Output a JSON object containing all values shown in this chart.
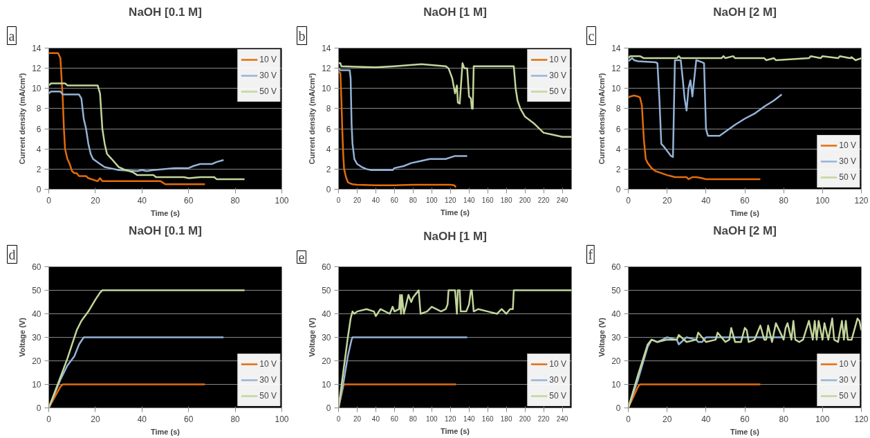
{
  "chart_data": [
    {
      "type": "line",
      "title": "NaOH [0.1 M]",
      "xlabel": "Time (s)",
      "ylabel": "Current density (mA/cm²)",
      "annotations": [
        "a"
      ],
      "xlim": [
        0,
        100
      ],
      "xticks": [
        0,
        20,
        40,
        60,
        80,
        100
      ],
      "ylim": [
        0,
        14
      ],
      "yticks": [
        0,
        2,
        4,
        6,
        8,
        10,
        12,
        14
      ],
      "grid": "y",
      "legend": "top right",
      "series": [
        {
          "name": "10 V",
          "color": "#e46c0a",
          "x": [
            0,
            3,
            4,
            5,
            6,
            6.5,
            7,
            8,
            9,
            10,
            11,
            12,
            13,
            16,
            17,
            21,
            22,
            23,
            24,
            48,
            50,
            67
          ],
          "values": [
            13.5,
            13.5,
            13.5,
            13,
            9,
            6,
            4,
            3,
            2.5,
            1.8,
            1.6,
            1.6,
            1.3,
            1.3,
            1.1,
            0.8,
            1.1,
            0.8,
            0.8,
            0.8,
            0.5,
            0.5
          ]
        },
        {
          "name": "30 V",
          "color": "#95b3d7",
          "x": [
            0,
            1,
            5,
            6,
            13,
            14,
            15,
            16,
            17,
            18,
            19,
            22,
            24,
            26,
            30,
            38,
            40,
            42,
            45,
            54,
            60,
            62,
            65,
            70,
            72,
            75
          ],
          "values": [
            9.5,
            9.7,
            9.7,
            9.4,
            9.4,
            9,
            7,
            6,
            4.5,
            3.5,
            3,
            2.5,
            2.2,
            2.1,
            1.9,
            1.8,
            1.9,
            1.8,
            1.9,
            2.1,
            2.1,
            2.3,
            2.5,
            2.5,
            2.7,
            2.9
          ]
        },
        {
          "name": "50 V",
          "color": "#c3d69b",
          "x": [
            0,
            1,
            7,
            8,
            20,
            21,
            22,
            23,
            24,
            25,
            27,
            30,
            33,
            36,
            38,
            45,
            46,
            58,
            60,
            65,
            71,
            72,
            84
          ],
          "values": [
            10.3,
            10.5,
            10.5,
            10.3,
            10.3,
            10.3,
            9.5,
            6,
            4.5,
            3.5,
            3,
            2.2,
            1.9,
            1.7,
            1.4,
            1.4,
            1.2,
            1.2,
            1.1,
            1.2,
            1.2,
            1.0,
            1.0
          ]
        }
      ]
    },
    {
      "type": "line",
      "title": "NaOH [1 M]",
      "xlabel": "Time (s)",
      "ylabel": "Current density (mA/cm²)",
      "annotations": [
        "b"
      ],
      "xlim": [
        0,
        250
      ],
      "xticks": [
        0,
        20,
        40,
        60,
        80,
        100,
        120,
        140,
        160,
        180,
        200,
        220,
        240
      ],
      "ylim": [
        0,
        14
      ],
      "yticks": [
        0,
        2,
        4,
        6,
        8,
        10,
        12,
        14
      ],
      "grid": "y",
      "legend": "top right",
      "series": [
        {
          "name": "10 V",
          "color": "#e46c0a",
          "x": [
            0,
            2,
            3,
            4,
            5,
            6,
            8,
            10,
            12,
            15,
            20,
            40,
            60,
            80,
            120,
            124,
            126
          ],
          "values": [
            11.7,
            11.5,
            9,
            6,
            3.5,
            2,
            1.2,
            0.7,
            0.6,
            0.5,
            0.45,
            0.4,
            0.4,
            0.45,
            0.45,
            0.4,
            0.2
          ]
        },
        {
          "name": "30 V",
          "color": "#95b3d7",
          "x": [
            0,
            2,
            3,
            12,
            13,
            14,
            15,
            17,
            20,
            25,
            30,
            35,
            58,
            60,
            70,
            78,
            88,
            98,
            115,
            125,
            138
          ],
          "values": [
            12,
            11.8,
            11.8,
            11.8,
            11,
            6.5,
            4.5,
            3,
            2.5,
            2.2,
            2,
            1.9,
            1.9,
            2.1,
            2.3,
            2.6,
            2.8,
            3.0,
            3.0,
            3.3,
            3.3
          ]
        },
        {
          "name": "50 V",
          "color": "#c3d69b",
          "x": [
            0,
            2,
            3,
            40,
            60,
            89,
            115,
            118,
            122,
            125,
            127,
            128,
            130,
            133,
            135,
            138,
            140,
            142,
            143,
            144,
            145,
            146,
            150,
            180,
            188,
            190,
            192,
            195,
            200,
            210,
            220,
            230,
            240,
            250
          ],
          "values": [
            12.5,
            12.5,
            12.2,
            12.1,
            12.2,
            12.4,
            12.2,
            12,
            11,
            9.5,
            10.3,
            8.6,
            8.5,
            12.5,
            12,
            12,
            9.2,
            9,
            8,
            8,
            12.2,
            12.2,
            12.2,
            12.2,
            12.2,
            10,
            8.8,
            8,
            7.2,
            6.5,
            5.6,
            5.4,
            5.2,
            5.2
          ]
        }
      ]
    },
    {
      "type": "line",
      "title": "NaOH [2 M]",
      "xlabel": "Time (s)",
      "ylabel": "Current density (mA/cm²)",
      "annotations": [
        "c"
      ],
      "xlim": [
        0,
        120
      ],
      "xticks": [
        0,
        20,
        40,
        60,
        80,
        100,
        120
      ],
      "ylim": [
        0,
        14
      ],
      "yticks": [
        0,
        2,
        4,
        6,
        8,
        10,
        12,
        14
      ],
      "grid": "y",
      "legend": "bottom right",
      "series": [
        {
          "name": "10 V",
          "color": "#e46c0a",
          "x": [
            0,
            1,
            3,
            5,
            6,
            7,
            8,
            9,
            10,
            12,
            14,
            17,
            20,
            22,
            24,
            30,
            31,
            33,
            35,
            38,
            40,
            68
          ],
          "values": [
            9.1,
            9.2,
            9.3,
            9.2,
            9.1,
            8.3,
            5,
            3,
            2.6,
            2.1,
            1.8,
            1.6,
            1.4,
            1.3,
            1.2,
            1.2,
            1.0,
            1.2,
            1.2,
            1.1,
            1.0,
            1.0
          ]
        },
        {
          "name": "30 V",
          "color": "#95b3d7",
          "x": [
            0,
            2,
            3,
            5,
            14,
            15,
            16,
            17,
            18,
            22,
            23,
            24,
            27,
            28,
            29,
            30,
            31,
            32,
            33,
            34,
            35,
            38,
            39,
            40,
            41,
            47,
            55,
            60,
            65,
            70,
            75,
            79
          ],
          "values": [
            12.7,
            13,
            12.8,
            12.7,
            12.6,
            12.5,
            9,
            4.5,
            4.3,
            3.3,
            3.2,
            12.8,
            12.8,
            11,
            9,
            7.8,
            10,
            10.8,
            9.2,
            11,
            12.8,
            12.6,
            12.5,
            6,
            5.3,
            5.3,
            6.4,
            7,
            7.5,
            8.2,
            8.8,
            9.4
          ]
        },
        {
          "name": "50 V",
          "color": "#c3d69b",
          "x": [
            0,
            1,
            6,
            8,
            25,
            26,
            27,
            48,
            49,
            50,
            54,
            55,
            70,
            71,
            75,
            76,
            93,
            94,
            99,
            100,
            108,
            109,
            114,
            115,
            117,
            120
          ],
          "values": [
            13,
            13.2,
            13.2,
            13,
            13,
            13.2,
            13,
            13,
            13.2,
            13,
            13.2,
            13,
            13,
            12.8,
            13,
            12.8,
            13,
            13.2,
            13,
            13.2,
            13,
            13.2,
            13,
            13.1,
            12.8,
            13
          ]
        }
      ]
    },
    {
      "type": "line",
      "title": "NaOH [0.1 M]",
      "xlabel": "Time (s)",
      "ylabel": "Voltage (V)",
      "annotations": [
        "d"
      ],
      "xlim": [
        0,
        100
      ],
      "xticks": [
        0,
        20,
        40,
        60,
        80,
        100
      ],
      "ylim": [
        0,
        60
      ],
      "yticks": [
        0,
        10,
        20,
        30,
        40,
        50,
        60
      ],
      "grid": "y",
      "legend": "bottom right",
      "series": [
        {
          "name": "10 V",
          "color": "#e46c0a",
          "x": [
            0,
            5,
            6,
            67
          ],
          "values": [
            0,
            9,
            10,
            10
          ]
        },
        {
          "name": "30 V",
          "color": "#95b3d7",
          "x": [
            0,
            5,
            8,
            11,
            13,
            15,
            75
          ],
          "values": [
            0,
            12,
            18,
            22,
            27,
            30,
            30
          ]
        },
        {
          "name": "50 V",
          "color": "#c3d69b",
          "x": [
            0,
            5,
            8,
            10,
            12,
            14,
            17,
            20,
            22,
            23,
            84
          ],
          "values": [
            0,
            13,
            21,
            27,
            33,
            37,
            41,
            46,
            49,
            50,
            50
          ]
        }
      ]
    },
    {
      "type": "line",
      "title": "NaOH [1 M]",
      "xlabel": "Time (s)",
      "ylabel": "Voltage (V)",
      "annotations": [
        "e"
      ],
      "xlim": [
        0,
        250
      ],
      "xticks": [
        0,
        20,
        40,
        60,
        80,
        100,
        120,
        140,
        160,
        180,
        200,
        220,
        240
      ],
      "ylim": [
        0,
        60
      ],
      "yticks": [
        0,
        10,
        20,
        30,
        40,
        50,
        60
      ],
      "grid": "y",
      "legend": "bottom right",
      "series": [
        {
          "name": "10 V",
          "color": "#e46c0a",
          "x": [
            0,
            5,
            6,
            126
          ],
          "values": [
            0,
            9,
            10,
            10
          ]
        },
        {
          "name": "30 V",
          "color": "#95b3d7",
          "x": [
            0,
            5,
            10,
            14,
            15,
            138
          ],
          "values": [
            0,
            10,
            22,
            29,
            30,
            30
          ]
        },
        {
          "name": "50 V",
          "color": "#c3d69b",
          "x": [
            0,
            5,
            10,
            13,
            15,
            17,
            20,
            30,
            38,
            40,
            45,
            50,
            55,
            58,
            60,
            65,
            66,
            67,
            68,
            70,
            72,
            75,
            78,
            80,
            84,
            86,
            88,
            95,
            100,
            110,
            115,
            117,
            118,
            125,
            127,
            128,
            130,
            131,
            134,
            137,
            140,
            142,
            143,
            145,
            150,
            160,
            170,
            175,
            180,
            184,
            187,
            188,
            250
          ],
          "values": [
            0,
            15,
            30,
            38,
            41,
            40,
            41,
            42,
            41,
            39,
            42,
            41,
            40,
            43,
            41,
            42,
            48,
            40,
            48,
            40,
            43,
            48,
            45,
            47,
            49,
            50,
            40,
            41,
            43,
            41,
            42,
            44,
            50,
            50,
            40,
            50,
            50,
            41,
            41,
            41,
            44,
            50,
            50,
            41,
            42,
            41,
            40,
            42,
            40,
            42,
            42,
            50,
            50
          ]
        }
      ]
    },
    {
      "type": "line",
      "title": "NaOH [2 M]",
      "xlabel": "Time (s)",
      "ylabel": "Voltage (V)",
      "annotations": [
        "f"
      ],
      "xlim": [
        0,
        120
      ],
      "xticks": [
        0,
        20,
        40,
        60,
        80,
        100,
        120
      ],
      "ylim": [
        0,
        60
      ],
      "yticks": [
        0,
        10,
        20,
        30,
        40,
        50,
        60
      ],
      "grid": "y",
      "legend": "bottom right",
      "series": [
        {
          "name": "10 V",
          "color": "#e46c0a",
          "x": [
            0,
            5,
            6,
            68
          ],
          "values": [
            0,
            9,
            10,
            10
          ]
        },
        {
          "name": "30 V",
          "color": "#95b3d7",
          "x": [
            0,
            5,
            10,
            12,
            15,
            20,
            25,
            26,
            30,
            35,
            36,
            38,
            40,
            45,
            80
          ],
          "values": [
            0,
            12,
            26,
            29,
            28,
            30,
            29,
            27,
            30,
            29,
            28,
            28,
            30,
            30,
            30
          ]
        },
        {
          "name": "50 V",
          "color": "#c3d69b",
          "x": [
            0,
            5,
            10,
            12,
            15,
            20,
            25,
            26,
            30,
            35,
            36,
            40,
            45,
            46,
            50,
            52,
            53,
            55,
            58,
            60,
            61,
            62,
            65,
            68,
            70,
            71,
            72,
            74,
            76,
            80,
            81,
            82,
            84,
            85,
            86,
            88,
            90,
            93,
            95,
            96,
            97,
            98,
            100,
            101,
            103,
            105,
            106,
            108,
            110,
            111,
            112,
            113,
            115,
            118,
            119,
            120
          ],
          "values": [
            0,
            14,
            27,
            29,
            28,
            29,
            29,
            31,
            28,
            29,
            32,
            28,
            29,
            32,
            28,
            29,
            34,
            28,
            28,
            34,
            33,
            28,
            29,
            35,
            29,
            29,
            35,
            28,
            36,
            29,
            34,
            36,
            29,
            37,
            29,
            28,
            29,
            37,
            29,
            37,
            29,
            37,
            29,
            36,
            29,
            38,
            29,
            28,
            37,
            29,
            37,
            29,
            29,
            38,
            37,
            33
          ]
        }
      ]
    }
  ]
}
